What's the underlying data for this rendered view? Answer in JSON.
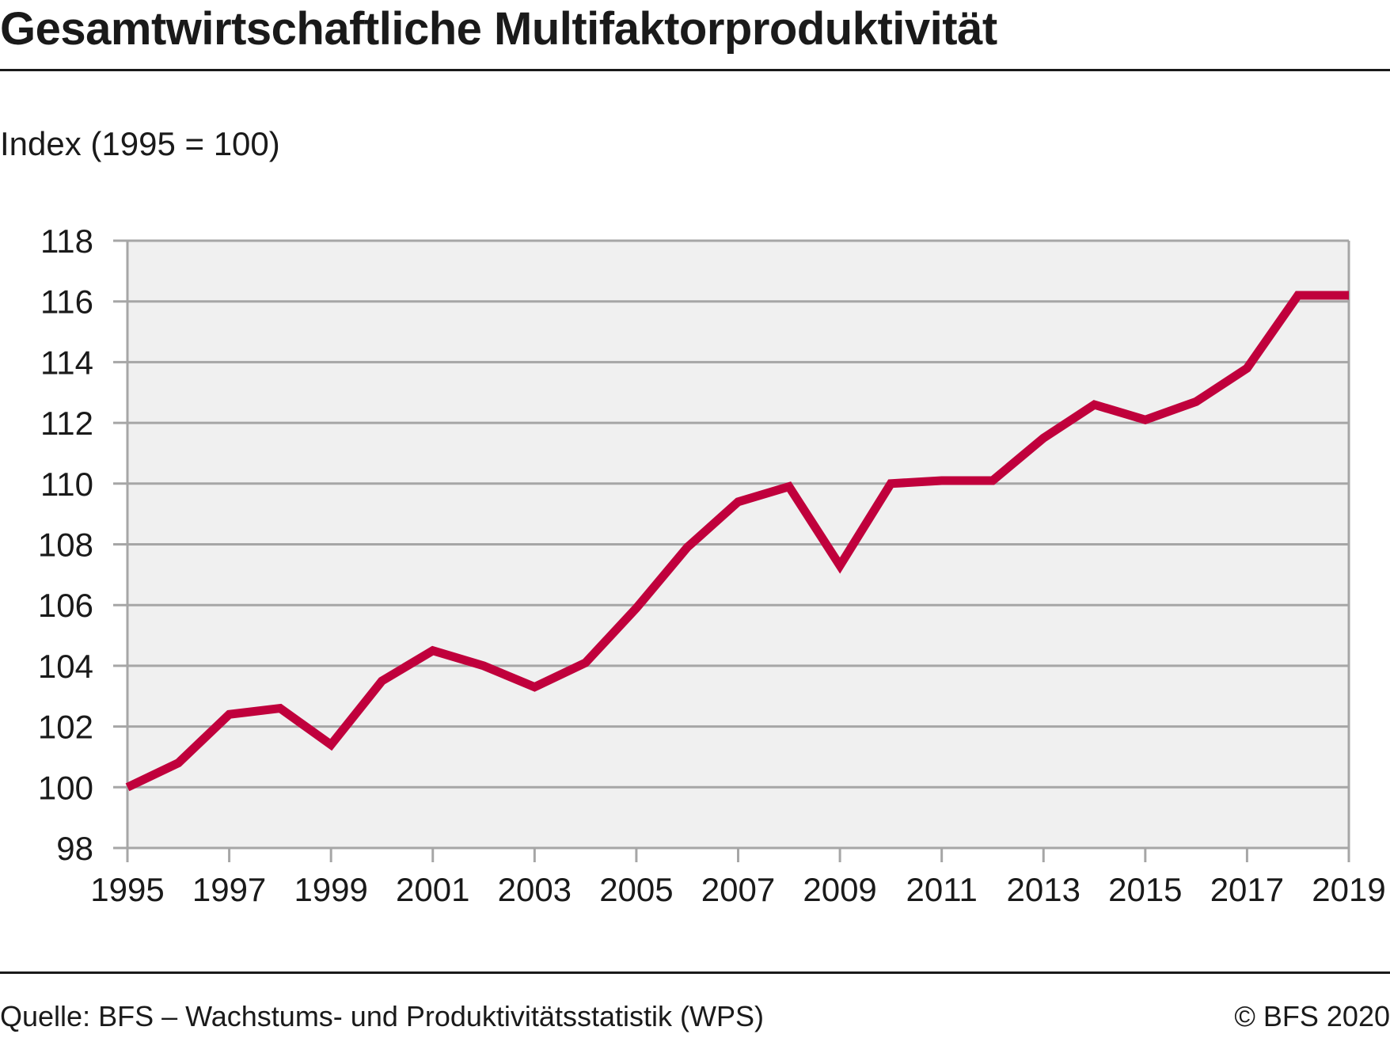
{
  "header": {
    "title": "Gesamtwirtschaftliche Multifaktorproduktivität",
    "unit_label": "Index (1995 = 100)"
  },
  "footer": {
    "source": "Quelle: BFS – Wachstums- und Produktivitätsstatistik (WPS)",
    "copyright": "© BFS 2020"
  },
  "colors": {
    "line": "#c0003c",
    "plot_background": "#f0f0f0",
    "grid": "#a6a6a6",
    "text": "#1a1a1a"
  },
  "chart_data": {
    "type": "line",
    "title": "Gesamtwirtschaftliche Multifaktorproduktivität",
    "xlabel": "",
    "ylabel": "Index (1995 = 100)",
    "x": [
      1995,
      1996,
      1997,
      1998,
      1999,
      2000,
      2001,
      2002,
      2003,
      2004,
      2005,
      2006,
      2007,
      2008,
      2009,
      2010,
      2011,
      2012,
      2013,
      2014,
      2015,
      2016,
      2017,
      2018,
      2019
    ],
    "series": [
      {
        "values": [
          100.0,
          100.8,
          102.4,
          102.6,
          101.4,
          103.5,
          104.5,
          104.0,
          103.3,
          104.1,
          105.9,
          107.9,
          109.4,
          109.9,
          107.3,
          110.0,
          110.1,
          110.1,
          111.5,
          112.6,
          112.1,
          112.7,
          113.8,
          116.2,
          116.2
        ]
      }
    ],
    "xlim": [
      1995,
      2019
    ],
    "ylim": [
      98,
      118
    ],
    "x_ticks": [
      "1995",
      "1997",
      "1999",
      "2001",
      "2003",
      "2005",
      "2007",
      "2009",
      "2011",
      "2013",
      "2015",
      "2017",
      "2019"
    ],
    "y_ticks": [
      "98",
      "100",
      "102",
      "104",
      "106",
      "108",
      "110",
      "112",
      "114",
      "116",
      "118"
    ],
    "grid": true,
    "legend": "none"
  }
}
